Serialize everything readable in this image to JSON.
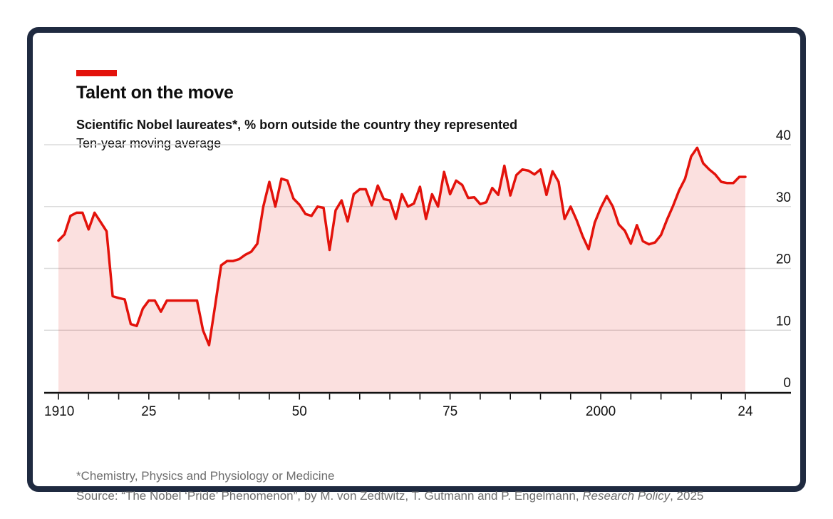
{
  "card": {
    "tag_color": "#E3120B",
    "title": "Talent on the move",
    "subtitle": "Scientific Nobel laureates*, % born outside the country they represented",
    "note": "Ten-year moving average",
    "footnote": "*Chemistry, Physics and Physiology or Medicine",
    "source_prefix": "Source: “The Nobel ‘Pride’ Phenomenon”, by M. von Zedtwitz, T. Gutmann and P. Engelmann, ",
    "source_italic": "Research Policy",
    "source_suffix": ", 2025"
  },
  "chart_data": {
    "type": "area",
    "title": "Talent on the move",
    "subtitle": "Scientific Nobel laureates*, % born outside the country they represented",
    "note": "Ten-year moving average",
    "x_start": 1910,
    "x_end": 2024,
    "x_step": 1,
    "values": [
      24.5,
      25.5,
      28.5,
      29,
      29,
      26.3,
      29,
      27.5,
      26,
      15.5,
      15.2,
      15,
      11,
      10.7,
      13.5,
      14.8,
      14.8,
      13,
      14.8,
      14.8,
      14.8,
      14.8,
      14.8,
      14.8,
      10,
      7.6,
      14,
      20.5,
      21.2,
      21.2,
      21.5,
      22.2,
      22.7,
      24,
      30,
      34,
      30,
      34.5,
      34.2,
      31.3,
      30.3,
      28.8,
      28.5,
      30,
      29.8,
      23,
      29.4,
      31,
      27.6,
      32,
      32.8,
      32.8,
      30.2,
      33.4,
      31.2,
      31,
      28,
      32,
      30,
      30.5,
      33.2,
      28,
      32,
      30,
      35.6,
      32,
      34.2,
      33.5,
      31.4,
      31.5,
      30.4,
      30.7,
      33,
      31.9,
      36.6,
      31.8,
      35.1,
      36,
      35.8,
      35.2,
      36,
      31.9,
      35.7,
      34,
      28,
      30,
      27.8,
      25.2,
      23.1,
      27.4,
      29.8,
      31.7,
      30,
      27.1,
      26.1,
      24,
      27,
      24.4,
      23.9,
      24.2,
      25.4,
      27.9,
      30.1,
      32.6,
      34.5,
      38.1,
      39.5,
      37,
      36,
      35.2,
      34,
      33.8,
      33.8,
      34.8,
      34.8
    ],
    "ylim": [
      0,
      40
    ],
    "y_ticks": [
      0,
      10,
      20,
      30,
      40
    ],
    "x_ticks": [
      1910,
      1915,
      1920,
      1925,
      1930,
      1935,
      1940,
      1945,
      1950,
      1955,
      1960,
      1965,
      1970,
      1975,
      1980,
      1985,
      1990,
      1995,
      2000,
      2005,
      2010,
      2015,
      2020,
      2024
    ],
    "x_tick_labels": [
      {
        "year": 1910,
        "text": "1910",
        "anchor": "start"
      },
      {
        "year": 1925,
        "text": "25",
        "anchor": "middle"
      },
      {
        "year": 1950,
        "text": "50",
        "anchor": "middle"
      },
      {
        "year": 1975,
        "text": "75",
        "anchor": "middle"
      },
      {
        "year": 2000,
        "text": "2000",
        "anchor": "middle"
      },
      {
        "year": 2024,
        "text": "24",
        "anchor": "middle"
      }
    ],
    "grid": "horizontal",
    "legend_position": "none",
    "line_color": "#E3120B",
    "fill_color": "rgba(227,18,11,0.13)",
    "gridline_color": "#dcdcdc",
    "axis_color": "#111111"
  }
}
